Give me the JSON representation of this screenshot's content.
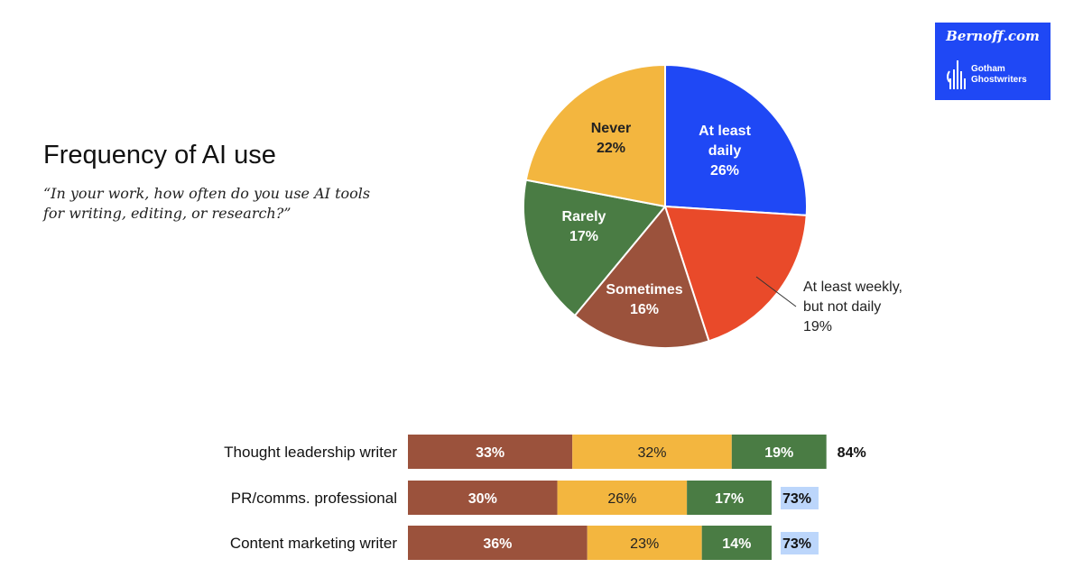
{
  "title": "Frequency of AI use",
  "subtitle": "“In your work, how often do you use AI tools for writing, editing, or research?”",
  "logo": {
    "brand": "Bernoff.com",
    "sub1": "Gotham",
    "sub2": "Ghostwriters",
    "color": "#1f48f5"
  },
  "chart_data": [
    {
      "type": "pie",
      "slices": [
        {
          "label": "At least daily",
          "value": 26,
          "color": "#1f48f5",
          "lines": [
            "At least",
            "daily",
            "26%"
          ]
        },
        {
          "label": "At least weekly, but not daily",
          "value": 19,
          "color": "#e94a2a",
          "lines": [
            "At least weekly,",
            "but not daily",
            "19%"
          ]
        },
        {
          "label": "Sometimes",
          "value": 16,
          "color": "#9b523c",
          "lines": [
            "Sometimes",
            "16%"
          ]
        },
        {
          "label": "Rarely",
          "value": 17,
          "color": "#4a7c44",
          "lines": [
            "Rarely",
            "17%"
          ]
        },
        {
          "label": "Never",
          "value": 22,
          "color": "#f3b63f",
          "lines": [
            "Never",
            "22%"
          ]
        }
      ]
    },
    {
      "type": "bar",
      "orientation": "horizontal",
      "stacked": true,
      "categories": [
        "Thought leadership writer",
        "PR/comms. professional",
        "Content marketing writer"
      ],
      "series": [
        {
          "values": [
            33,
            30,
            36
          ],
          "color": "#9b523c"
        },
        {
          "values": [
            32,
            26,
            23
          ],
          "color": "#f3b63f"
        },
        {
          "values": [
            19,
            17,
            14
          ],
          "color": "#4a7c44"
        }
      ],
      "totals": [
        "84%",
        "73%",
        "73%"
      ],
      "total_highlight": [
        false,
        true,
        true
      ],
      "highlight_color": "#bcd6fb"
    }
  ]
}
